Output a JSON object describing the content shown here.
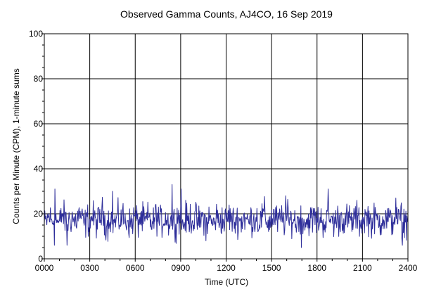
{
  "chart_data": {
    "type": "line",
    "title": "Observed Gamma Counts, AJ4CO, 16 Sep 2019",
    "xlabel": "Time (UTC)",
    "ylabel": "Counts per Minute (CPM), 1-minute sums",
    "x_unit": "minutes since 0000 UTC",
    "xlim": [
      0,
      1440
    ],
    "ylim": [
      0,
      100
    ],
    "x_ticks": [
      {
        "value": 0,
        "label": "0000"
      },
      {
        "value": 180,
        "label": "0300"
      },
      {
        "value": 360,
        "label": "0600"
      },
      {
        "value": 540,
        "label": "0900"
      },
      {
        "value": 720,
        "label": "1200"
      },
      {
        "value": 900,
        "label": "1500"
      },
      {
        "value": 1080,
        "label": "1800"
      },
      {
        "value": 1260,
        "label": "2100"
      },
      {
        "value": 1440,
        "label": "2400"
      }
    ],
    "y_ticks": [
      {
        "value": 0,
        "label": "0"
      },
      {
        "value": 20,
        "label": "20"
      },
      {
        "value": 40,
        "label": "40"
      },
      {
        "value": 60,
        "label": "60"
      },
      {
        "value": 80,
        "label": "80"
      },
      {
        "value": 100,
        "label": "100"
      }
    ],
    "grid": true,
    "line_color": "#2e2e9a",
    "series": [
      {
        "interval_minutes": 10,
        "values": [
          15,
          17,
          19,
          16,
          18,
          17,
          15,
          20,
          18,
          16,
          17,
          19,
          16,
          18,
          20,
          17,
          15,
          18,
          16,
          19,
          17,
          16,
          18,
          20,
          17,
          15,
          19,
          17,
          16,
          18,
          17,
          19,
          16,
          18,
          15,
          17,
          19,
          16,
          18,
          17,
          16,
          18,
          17,
          15,
          19,
          18,
          16,
          17,
          19,
          16,
          18,
          17,
          16,
          20,
          17,
          15,
          18,
          16,
          19,
          17,
          18,
          16,
          17,
          19,
          16,
          18,
          17,
          15,
          19,
          17,
          18,
          16,
          17,
          19,
          18,
          16,
          17,
          18,
          16,
          19,
          17,
          16,
          18,
          17,
          19,
          16,
          18,
          20,
          17,
          16,
          18,
          19,
          17,
          16,
          18,
          17,
          19,
          16,
          18,
          17,
          16,
          18,
          19,
          17,
          16,
          18,
          17,
          19,
          16,
          18,
          17,
          16,
          19,
          18,
          17,
          16,
          18,
          17,
          19,
          16,
          18,
          17,
          16,
          19,
          18,
          16,
          17,
          18,
          19,
          17,
          16,
          18,
          17,
          16,
          19,
          17,
          18,
          16,
          17,
          19,
          16,
          18,
          17
        ]
      }
    ],
    "peaks": [
      {
        "x": 43,
        "y": 31
      },
      {
        "x": 271,
        "y": 30
      },
      {
        "x": 507,
        "y": 33
      },
      {
        "x": 543,
        "y": 31
      },
      {
        "x": 1125,
        "y": 31
      },
      {
        "x": 957,
        "y": 28
      },
      {
        "x": 1393,
        "y": 27
      }
    ],
    "dips": [
      {
        "x": 40,
        "y": 6
      },
      {
        "x": 90,
        "y": 6
      },
      {
        "x": 1018,
        "y": 5
      },
      {
        "x": 1418,
        "y": 6
      },
      {
        "x": 640,
        "y": 8
      }
    ]
  }
}
